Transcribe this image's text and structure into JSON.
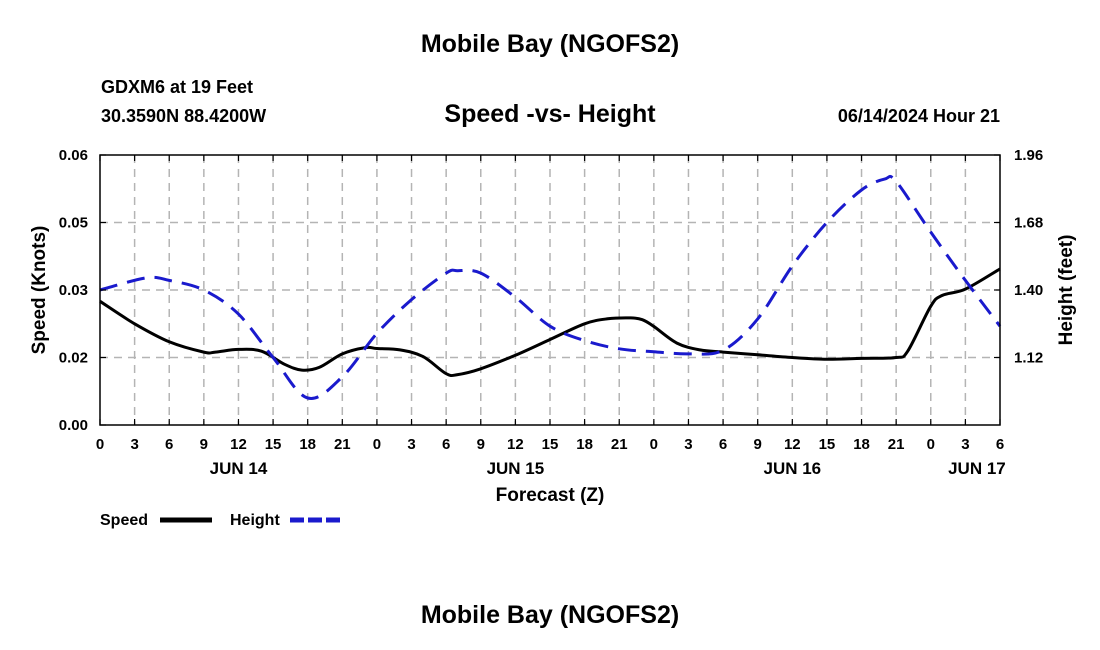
{
  "header": {
    "title": "Mobile Bay (NGOFS2)",
    "station": "GDXM6 at 19 Feet",
    "coords": "30.3590N  88.4200W",
    "subtitle": "Speed -vs- Height",
    "timestamp": "06/14/2024 Hour 21",
    "footer_title": "Mobile Bay (NGOFS2)"
  },
  "chart_data": {
    "type": "line",
    "title": "Speed -vs- Height",
    "xlabel": "Forecast (Z)",
    "ylabel": "Speed (Knots)",
    "y2label": "Height (feet)",
    "xlim": [
      0,
      78
    ],
    "ylim": [
      0,
      0.06
    ],
    "y2lim": [
      0.84,
      1.96
    ],
    "x_ticks": [
      0,
      3,
      6,
      9,
      12,
      15,
      18,
      21,
      24,
      27,
      30,
      33,
      36,
      39,
      42,
      45,
      48,
      51,
      54,
      57,
      60,
      63,
      66,
      69,
      72,
      75,
      78
    ],
    "x_tick_labels": [
      "0",
      "3",
      "6",
      "9",
      "12",
      "15",
      "18",
      "21",
      "0",
      "3",
      "6",
      "9",
      "12",
      "15",
      "18",
      "21",
      "0",
      "3",
      "6",
      "9",
      "12",
      "15",
      "18",
      "21",
      "0",
      "3",
      "6"
    ],
    "date_labels": [
      {
        "x": 12,
        "label": "JUN 14"
      },
      {
        "x": 36,
        "label": "JUN 15"
      },
      {
        "x": 60,
        "label": "JUN 16"
      },
      {
        "x": 76,
        "label": "JUN 17"
      }
    ],
    "y_ticks": [
      0.0,
      0.015,
      0.03,
      0.045,
      0.06
    ],
    "y_tick_labels": [
      "0.00",
      "0.02",
      "0.03",
      "0.05",
      "0.06"
    ],
    "y2_ticks": [
      1.12,
      1.4,
      1.68,
      1.96
    ],
    "y2_tick_labels": [
      "1.12",
      "1.40",
      "1.68",
      "1.96"
    ],
    "grid": true,
    "legend": "bottom-left",
    "series": [
      {
        "name": "Speed",
        "axis": "left",
        "color": "#000000",
        "dash": "solid",
        "x": [
          0,
          3,
          6,
          9,
          10,
          12,
          14,
          16,
          17.5,
          19,
          21,
          23,
          24,
          26,
          28,
          30,
          31,
          33,
          36,
          39,
          42,
          44,
          46,
          47,
          48,
          50,
          52,
          54,
          57,
          60,
          63,
          66,
          69,
          70,
          72,
          73,
          75,
          78
        ],
        "y": [
          0.0275,
          0.0225,
          0.0185,
          0.0162,
          0.0162,
          0.0168,
          0.0164,
          0.0135,
          0.0122,
          0.0128,
          0.0158,
          0.0172,
          0.017,
          0.0167,
          0.0152,
          0.0114,
          0.0112,
          0.0125,
          0.0155,
          0.019,
          0.0225,
          0.0236,
          0.0238,
          0.0234,
          0.0219,
          0.0182,
          0.0167,
          0.0162,
          0.0156,
          0.015,
          0.0146,
          0.0148,
          0.015,
          0.0164,
          0.0264,
          0.0288,
          0.0302,
          0.0347
        ]
      },
      {
        "name": "Height",
        "axis": "right",
        "color": "#1a1acd",
        "dash": "dashed",
        "x": [
          0,
          4,
          6,
          9,
          12,
          15,
          18,
          21,
          24,
          27,
          30,
          31,
          33,
          36,
          39,
          42,
          45,
          48,
          51,
          54,
          57,
          60,
          63,
          66,
          68,
          69,
          72,
          75,
          78
        ],
        "y": [
          1.4,
          1.45,
          1.44,
          1.4,
          1.3,
          1.12,
          0.952,
          1.04,
          1.22,
          1.36,
          1.47,
          1.48,
          1.47,
          1.37,
          1.25,
          1.19,
          1.156,
          1.144,
          1.135,
          1.15,
          1.28,
          1.5,
          1.68,
          1.815,
          1.86,
          1.85,
          1.64,
          1.44,
          1.25
        ]
      }
    ]
  }
}
